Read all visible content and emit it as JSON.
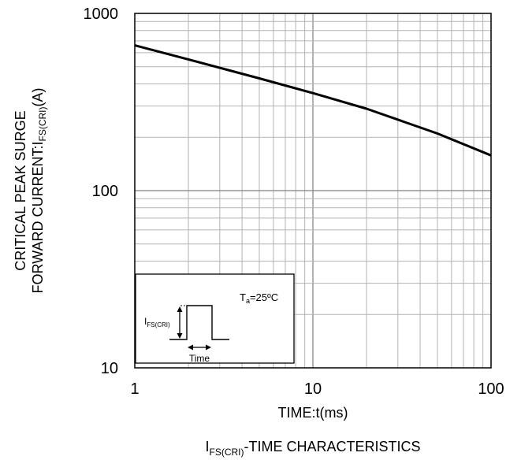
{
  "chart_data": {
    "type": "line",
    "title": {
      "prefix": "I",
      "sub": "FS(CRI)",
      "rest": "-TIME CHARACTERISTICS"
    },
    "xlabel": "TIME:t(ms)",
    "ylabel": {
      "line1": "CRITICAL PEAK SURGE",
      "line2_prefix": "FORWARD CURRENT:I",
      "line2_sub": "FS(CRI)",
      "line2_suffix": "(A)"
    },
    "x_scale": "log",
    "y_scale": "log",
    "xlim": [
      1,
      100
    ],
    "ylim": [
      10,
      1000
    ],
    "x_ticks": [
      {
        "value": 1,
        "label": "1"
      },
      {
        "value": 10,
        "label": "10"
      },
      {
        "value": 100,
        "label": "100"
      }
    ],
    "y_ticks": [
      {
        "value": 10,
        "label": "10"
      },
      {
        "value": 100,
        "label": "100"
      },
      {
        "value": 1000,
        "label": "1000"
      }
    ],
    "grid": true,
    "series": [
      {
        "x": [
          1,
          2,
          5,
          10,
          20,
          50,
          100
        ],
        "y": [
          660,
          550,
          430,
          355,
          290,
          210,
          158
        ]
      }
    ],
    "inset": {
      "temp_prefix": "T",
      "temp_sub": "a",
      "temp_suffix": "=25ºC",
      "pulse_label_prefix": "I",
      "pulse_label_sub": "FS(CRI)",
      "time_label": "Time"
    },
    "colors": {
      "line": "#000000",
      "grid_major": "#7f7f7f",
      "grid_minor": "#b3b3b3",
      "frame": "#000000"
    }
  }
}
